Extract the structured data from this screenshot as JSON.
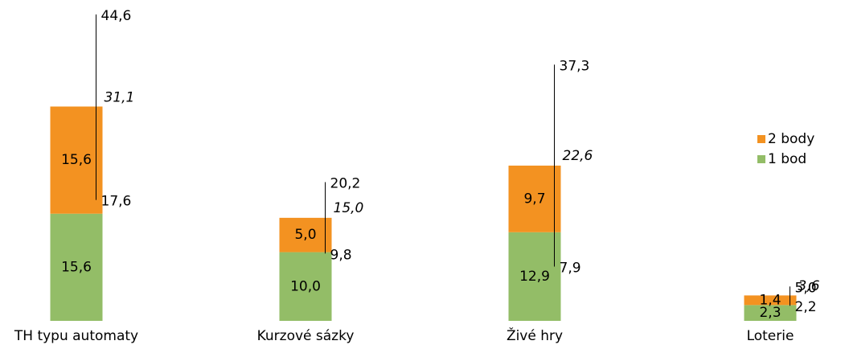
{
  "chart_data": {
    "type": "stacked_bar_range",
    "categories": [
      "TH typu automaty",
      "Kurzové sázky",
      "Živé hry",
      "Loterie"
    ],
    "series": [
      {
        "name": "1 bod",
        "color": "#93bd67",
        "values": [
          15.6,
          10.0,
          12.9,
          2.3
        ],
        "value_labels": [
          "15,6",
          "10,0",
          "12,9",
          "2,3"
        ]
      },
      {
        "name": "2 body",
        "color": "#f39221",
        "values": [
          15.6,
          5.0,
          9.7,
          1.4
        ],
        "value_labels": [
          "15,6",
          "5,0",
          "9,7",
          "1,4"
        ]
      }
    ],
    "totals": {
      "color": "#93bd67",
      "values": [
        31.1,
        15.0,
        22.6,
        3.6
      ],
      "value_labels": [
        "31,1",
        "15,0",
        "22,6",
        "3,6"
      ]
    },
    "range_low": {
      "values": [
        17.6,
        9.8,
        7.9,
        2.2
      ],
      "value_labels": [
        "17,6",
        "9,8",
        "7,9",
        "2,2"
      ]
    },
    "range_high": {
      "values": [
        44.6,
        20.2,
        37.3,
        5.0
      ],
      "value_labels": [
        "44,6",
        "20,2",
        "37,3",
        "5,0"
      ]
    },
    "legend": "right"
  }
}
